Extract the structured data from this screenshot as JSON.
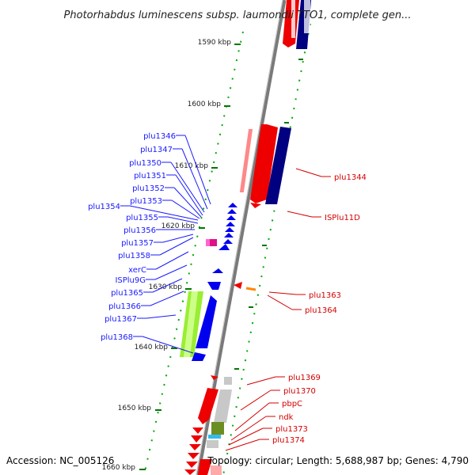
{
  "header": {
    "title": "Photorhabdus luminescens subsp. laumondii TTO1, complete gen..."
  },
  "footer": {
    "accession": "Accession: NC_005126",
    "summary": "Topology: circular; Length: 5,688,987 bp; Genes: 4,790"
  },
  "ruler": {
    "ticks": [
      "1590 kbp",
      "1600 kbp",
      "1610 kbp",
      "1620 kbp",
      "1630 kbp",
      "1640 kbp",
      "1650 kbp",
      "1660 kbp"
    ]
  },
  "labels_left": [
    "plu1346",
    "plu1347",
    "plu1350",
    "plu1351",
    "plu1352",
    "plu1353",
    "plu1354",
    "plu1355",
    "plu1356",
    "plu1357",
    "plu1358",
    "xerC",
    "ISPlu9G",
    "plu1365",
    "plu1366",
    "plu1367",
    "plu1368"
  ],
  "labels_right": [
    "plu1344",
    "ISPlu11D",
    "plu1363",
    "plu1364",
    "plu1369",
    "plu1370",
    "pbpC",
    "ndk",
    "plu1373",
    "plu1374"
  ],
  "colors": {
    "reverse_strand": "#ee0000",
    "forward_strand": "#0000ee",
    "dark_blue": "#000080",
    "lime": "#99ee33",
    "magenta": "#dd1188",
    "orange": "#ff8800",
    "gray": "#c8c8c8",
    "olive": "#6b8e23",
    "cyan": "#33bbee",
    "tick": "#007700",
    "label_left": "#1a1aff",
    "label_right": "#d40000"
  }
}
